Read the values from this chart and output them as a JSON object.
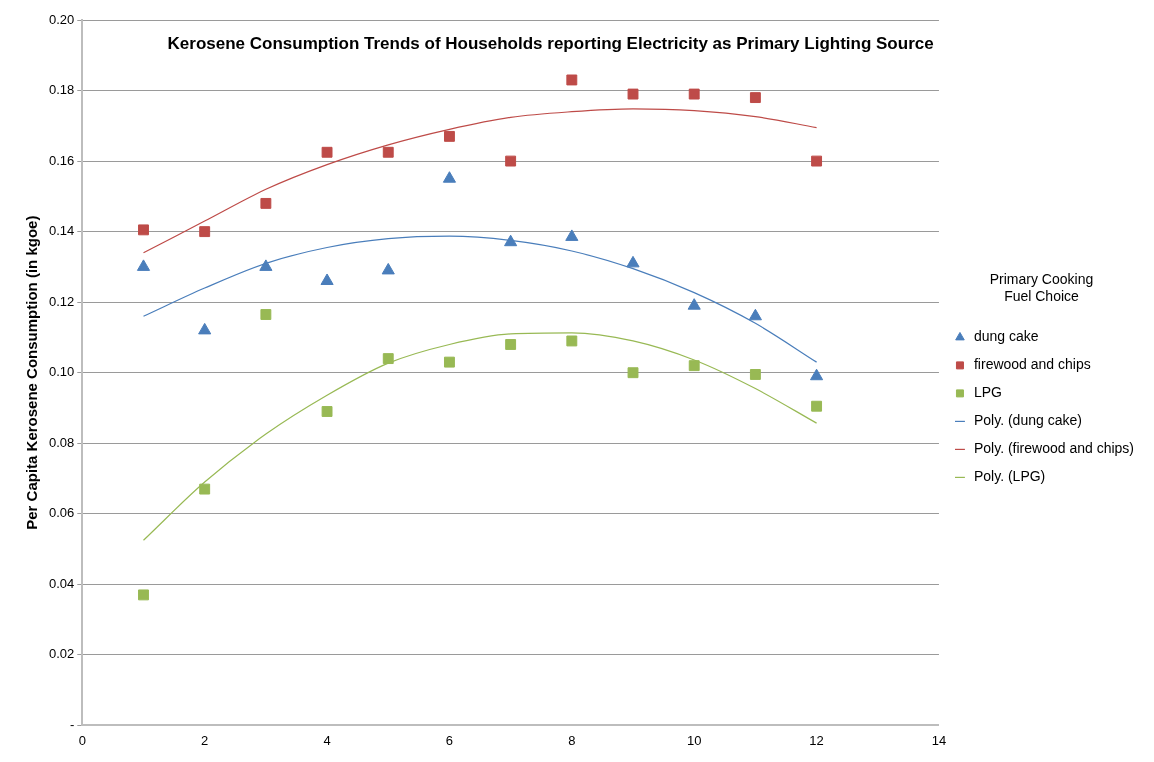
{
  "chart_data": {
    "type": "scatter",
    "title": "Kerosene Consumption Trends of Households reporting Electricity as Primary Lighting Source",
    "ylabel": "Per Capita Kerosene Consumption (in kgoe)",
    "legend_title": "Primary Cooking Fuel Choice",
    "x": [
      1,
      2,
      3,
      4,
      5,
      6,
      7,
      8,
      9,
      10,
      11,
      12
    ],
    "series": [
      {
        "name": "dung cake",
        "color": "#4a7ebb",
        "marker": "triangle",
        "values": [
          0.13,
          0.112,
          0.13,
          0.126,
          0.129,
          0.155,
          0.137,
          0.1385,
          0.131,
          0.119,
          0.116,
          0.099
        ]
      },
      {
        "name": "firewood and chips",
        "color": "#be4b48",
        "marker": "square",
        "values": [
          0.1405,
          0.14,
          0.148,
          0.1625,
          0.1625,
          0.167,
          0.16,
          0.183,
          0.179,
          0.179,
          0.178,
          0.16
        ]
      },
      {
        "name": "LPG",
        "color": "#98b954",
        "marker": "square",
        "values": [
          0.037,
          0.067,
          0.1165,
          0.089,
          0.104,
          0.103,
          0.108,
          0.109,
          0.1,
          0.102,
          0.0995,
          0.0905
        ]
      },
      {
        "name": "Poly. (dung cake)",
        "type": "line",
        "color": "#4a7ebb",
        "marker": "none",
        "x": [
          1,
          2,
          3,
          4,
          5,
          6,
          7,
          8,
          9,
          10,
          11,
          12
        ],
        "values": [
          0.116,
          0.124,
          0.131,
          0.1355,
          0.138,
          0.1387,
          0.1375,
          0.1345,
          0.1295,
          0.1227,
          0.114,
          0.103
        ]
      },
      {
        "name": "Poly. (firewood and chips)",
        "type": "line",
        "color": "#be4b48",
        "marker": "none",
        "x": [
          1,
          2,
          3,
          4,
          5,
          6,
          7,
          8,
          9,
          10,
          11,
          12
        ],
        "values": [
          0.134,
          0.143,
          0.152,
          0.159,
          0.1646,
          0.169,
          0.1724,
          0.174,
          0.1748,
          0.1743,
          0.1726,
          0.1695
        ]
      },
      {
        "name": "Poly. (LPG)",
        "type": "line",
        "color": "#98b954",
        "marker": "none",
        "x": [
          1,
          2,
          3,
          4,
          5,
          6,
          7,
          8,
          9,
          10,
          11,
          12
        ],
        "values": [
          0.0525,
          0.069,
          0.0826,
          0.0936,
          0.1027,
          0.108,
          0.111,
          0.1113,
          0.109,
          0.1036,
          0.0955,
          0.0857
        ]
      }
    ],
    "xlim": [
      0,
      14
    ],
    "xticks": [
      0,
      2,
      4,
      6,
      8,
      10,
      12,
      14
    ],
    "ylim": [
      0,
      0.2
    ],
    "yticks": [
      {
        "value": 0,
        "label": "-"
      },
      0.02,
      0.04,
      0.06,
      0.08,
      {
        "value": 0.1,
        "label": "0.10"
      },
      0.12,
      0.14,
      0.16,
      0.18,
      {
        "value": 0.2,
        "label": "0.20"
      }
    ],
    "grid": "y",
    "legend": "right",
    "line_style": "solid"
  }
}
